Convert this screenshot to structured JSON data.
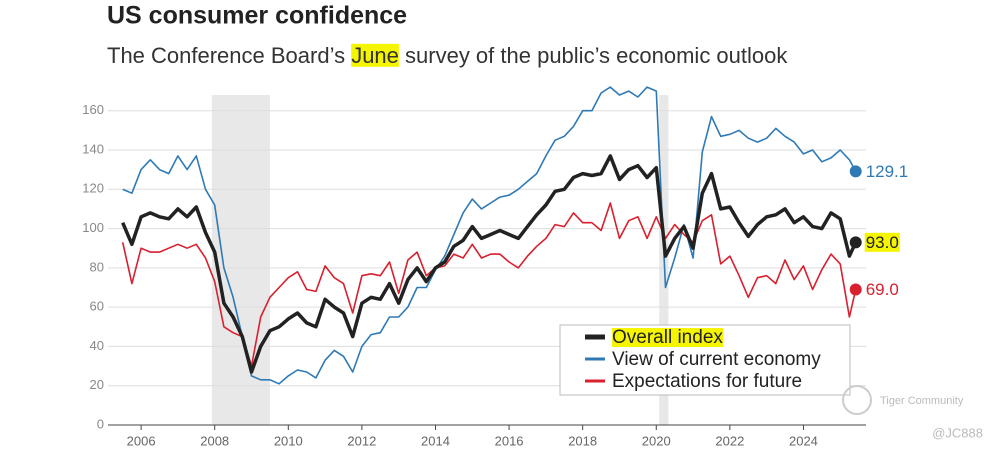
{
  "chart_data": {
    "type": "line",
    "title": "US consumer confidence",
    "subtitle": [
      "The Conference Board’s ",
      "June",
      " survey of the public’s economic outlook"
    ],
    "subtitle_highlight": 1,
    "x": [
      2005.5,
      2005.75,
      2006,
      2006.25,
      2006.5,
      2006.75,
      2007,
      2007.25,
      2007.5,
      2007.75,
      2008,
      2008.25,
      2008.5,
      2008.75,
      2009,
      2009.25,
      2009.5,
      2009.75,
      2010,
      2010.25,
      2010.5,
      2010.75,
      2011,
      2011.25,
      2011.5,
      2011.75,
      2012,
      2012.25,
      2012.5,
      2012.75,
      2013,
      2013.25,
      2013.5,
      2013.75,
      2014,
      2014.25,
      2014.5,
      2014.75,
      2015,
      2015.25,
      2015.5,
      2015.75,
      2016,
      2016.25,
      2016.5,
      2016.75,
      2017,
      2017.25,
      2017.5,
      2017.75,
      2018,
      2018.25,
      2018.5,
      2018.75,
      2019,
      2019.25,
      2019.5,
      2019.75,
      2020,
      2020.25,
      2020.5,
      2020.75,
      2021,
      2021.25,
      2021.5,
      2021.75,
      2022,
      2022.25,
      2022.5,
      2022.75,
      2023,
      2023.25,
      2023.5,
      2023.75,
      2024,
      2024.25,
      2024.5,
      2024.75,
      2025,
      2025.25,
      2025.42
    ],
    "series": [
      {
        "name": "View of current economy",
        "color": "#2f7ab5",
        "end_label": "129.1",
        "values": [
          120,
          118,
          130,
          135,
          130,
          128,
          137,
          130,
          137,
          120,
          112,
          80,
          65,
          45,
          25,
          23,
          23,
          21,
          25,
          28,
          27,
          24,
          33,
          38,
          35,
          27,
          40,
          46,
          47,
          55,
          55,
          60,
          70,
          70,
          79,
          86,
          97,
          108,
          115,
          110,
          113,
          116,
          117,
          120,
          124,
          128,
          137,
          145,
          147,
          152,
          160,
          160,
          169,
          172,
          168,
          170,
          167,
          172,
          170,
          70,
          85,
          102,
          85,
          139,
          157,
          147,
          148,
          150,
          146,
          144,
          146,
          151,
          147,
          144,
          138,
          140,
          134,
          136,
          140,
          135,
          129.1
        ]
      },
      {
        "name": "Expectations for future",
        "color": "#d8202e",
        "end_label": "69.0",
        "values": [
          93,
          72,
          90,
          88,
          88,
          90,
          92,
          90,
          92,
          85,
          73,
          50,
          47,
          45,
          30,
          55,
          65,
          70,
          75,
          78,
          69,
          68,
          81,
          75,
          72,
          57,
          76,
          77,
          76,
          83,
          67,
          84,
          88,
          76,
          80,
          81,
          87,
          85,
          92,
          85,
          87,
          87,
          83,
          80,
          86,
          91,
          95,
          102,
          101,
          108,
          103,
          103,
          99,
          113,
          95,
          104,
          106,
          95,
          106,
          95,
          102,
          97,
          93,
          104,
          107,
          82,
          86,
          76,
          65,
          75,
          76,
          72,
          84,
          74,
          81,
          69,
          79,
          87,
          82,
          55,
          69
        ]
      },
      {
        "name": "Overall index",
        "color": "#222222",
        "end_label": "93.0",
        "values": [
          103,
          92,
          106,
          108,
          106,
          105,
          110,
          106,
          111,
          98,
          88,
          62,
          55,
          45,
          27,
          40,
          48,
          50,
          54,
          57,
          52,
          50,
          64,
          60,
          57,
          45,
          62,
          65,
          64,
          72,
          62,
          74,
          80,
          73,
          80,
          83,
          91,
          94,
          101,
          95,
          97,
          99,
          97,
          95,
          101,
          107,
          112,
          119,
          120,
          126,
          128,
          127,
          128,
          137,
          125,
          130,
          132,
          126,
          131,
          86,
          95,
          101,
          90,
          118,
          128,
          110,
          111,
          103,
          96,
          102,
          106,
          107,
          110,
          103,
          106,
          101,
          100,
          108,
          105,
          86,
          93
        ]
      }
    ],
    "legend_order": [
      2,
      0,
      1
    ],
    "legend_highlight": 2,
    "shaded_ranges": [
      [
        2007.92,
        2009.5
      ],
      [
        2020.08,
        2020.33
      ]
    ],
    "xlim": [
      2005.1,
      2025.7
    ],
    "xticks": [
      2006,
      2008,
      2010,
      2012,
      2014,
      2016,
      2018,
      2020,
      2022,
      2024
    ],
    "ylim": [
      0,
      168
    ],
    "yticks": [
      0,
      20,
      40,
      60,
      80,
      100,
      120,
      140,
      160
    ],
    "grid": true,
    "watermark": [
      "Tiger Community",
      "@JC888"
    ]
  }
}
